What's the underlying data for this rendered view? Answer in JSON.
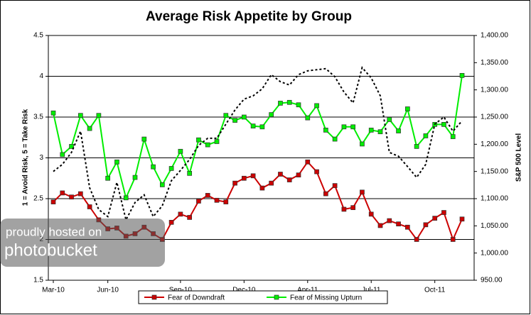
{
  "chart_data": {
    "type": "line",
    "title": "Average Risk Appetite by Group",
    "y_label": "1 = Avoid Risk, 5 = Take Risk",
    "y2_label": "S&P 500 Level",
    "categories": [
      "Mar-10",
      null,
      null,
      null,
      null,
      null,
      "Jun-10",
      null,
      null,
      null,
      null,
      null,
      null,
      null,
      "Sep-10",
      null,
      null,
      null,
      null,
      null,
      null,
      "Dec-10",
      null,
      null,
      null,
      null,
      null,
      null,
      "Apr-11",
      null,
      null,
      null,
      null,
      null,
      null,
      "Jul-11",
      null,
      null,
      null,
      null,
      null,
      null,
      "Oct-11",
      null,
      null,
      null
    ],
    "ylim": [
      1.5,
      4.5
    ],
    "yticks": [
      1.5,
      2,
      2.5,
      3,
      3.5,
      4,
      4.5
    ],
    "y2lim": [
      950,
      1400
    ],
    "y2ticks": [
      {
        "value": 950,
        "label": "950.00"
      },
      {
        "value": 1000,
        "label": "1,000.00"
      },
      {
        "value": 1050,
        "label": "1,050.00"
      },
      {
        "value": 1100,
        "label": "1,100.00"
      },
      {
        "value": 1150,
        "label": "1,150.00"
      },
      {
        "value": 1200,
        "label": "1,200.00"
      },
      {
        "value": 1250,
        "label": "1,250.00"
      },
      {
        "value": 1300,
        "label": "1,300.00"
      },
      {
        "value": 1350,
        "label": "1,350.00"
      },
      {
        "value": 1400,
        "label": "1,400.00"
      }
    ],
    "grid": true,
    "legend": "bottom",
    "series": [
      {
        "name": "Fear of Downdraft",
        "color": "#cc0000",
        "marker": "square",
        "values": [
          2.46,
          2.57,
          2.52,
          2.56,
          2.4,
          2.24,
          2.13,
          2.14,
          2.04,
          2.07,
          2.15,
          2.07,
          2.0,
          2.21,
          2.31,
          2.27,
          2.47,
          2.54,
          2.48,
          2.46,
          2.69,
          2.75,
          2.78,
          2.63,
          2.69,
          2.8,
          2.73,
          2.79,
          2.95,
          2.83,
          2.56,
          2.66,
          2.37,
          2.39,
          2.58,
          2.31,
          2.17,
          2.23,
          2.19,
          2.15,
          2.0,
          2.18,
          2.26,
          2.33,
          2.0,
          2.25
        ]
      },
      {
        "name": "Fear of Missing Upturn",
        "color": "#00ee00",
        "marker": "square",
        "values": [
          3.55,
          3.04,
          3.14,
          3.52,
          3.36,
          3.52,
          2.75,
          2.95,
          2.51,
          2.76,
          3.23,
          2.89,
          2.67,
          2.87,
          3.08,
          2.81,
          3.22,
          3.16,
          3.2,
          3.52,
          3.46,
          3.5,
          3.39,
          3.38,
          3.53,
          3.67,
          3.68,
          3.65,
          3.49,
          3.64,
          3.34,
          3.23,
          3.38,
          3.38,
          3.17,
          3.34,
          3.32,
          3.47,
          3.33,
          3.6,
          3.14,
          3.27,
          3.41,
          3.41,
          3.26,
          4.01
        ]
      },
      {
        "color": "#000000",
        "axis": "y2",
        "style": "dotted",
        "values": [
          1150,
          1163,
          1185,
          1224,
          1120,
          1080,
          1067,
          1130,
          1061,
          1093,
          1107,
          1067,
          1087,
          1133,
          1152,
          1172,
          1198,
          1211,
          1211,
          1237,
          1263,
          1283,
          1289,
          1302,
          1328,
          1315,
          1309,
          1328,
          1335,
          1337,
          1339,
          1324,
          1296,
          1276,
          1341,
          1322,
          1289,
          1185,
          1178,
          1159,
          1139,
          1163,
          1237,
          1250,
          1224,
          1243
        ]
      }
    ]
  },
  "watermark": {
    "line1": "proudly hosted on",
    "line2": "photobucket"
  }
}
